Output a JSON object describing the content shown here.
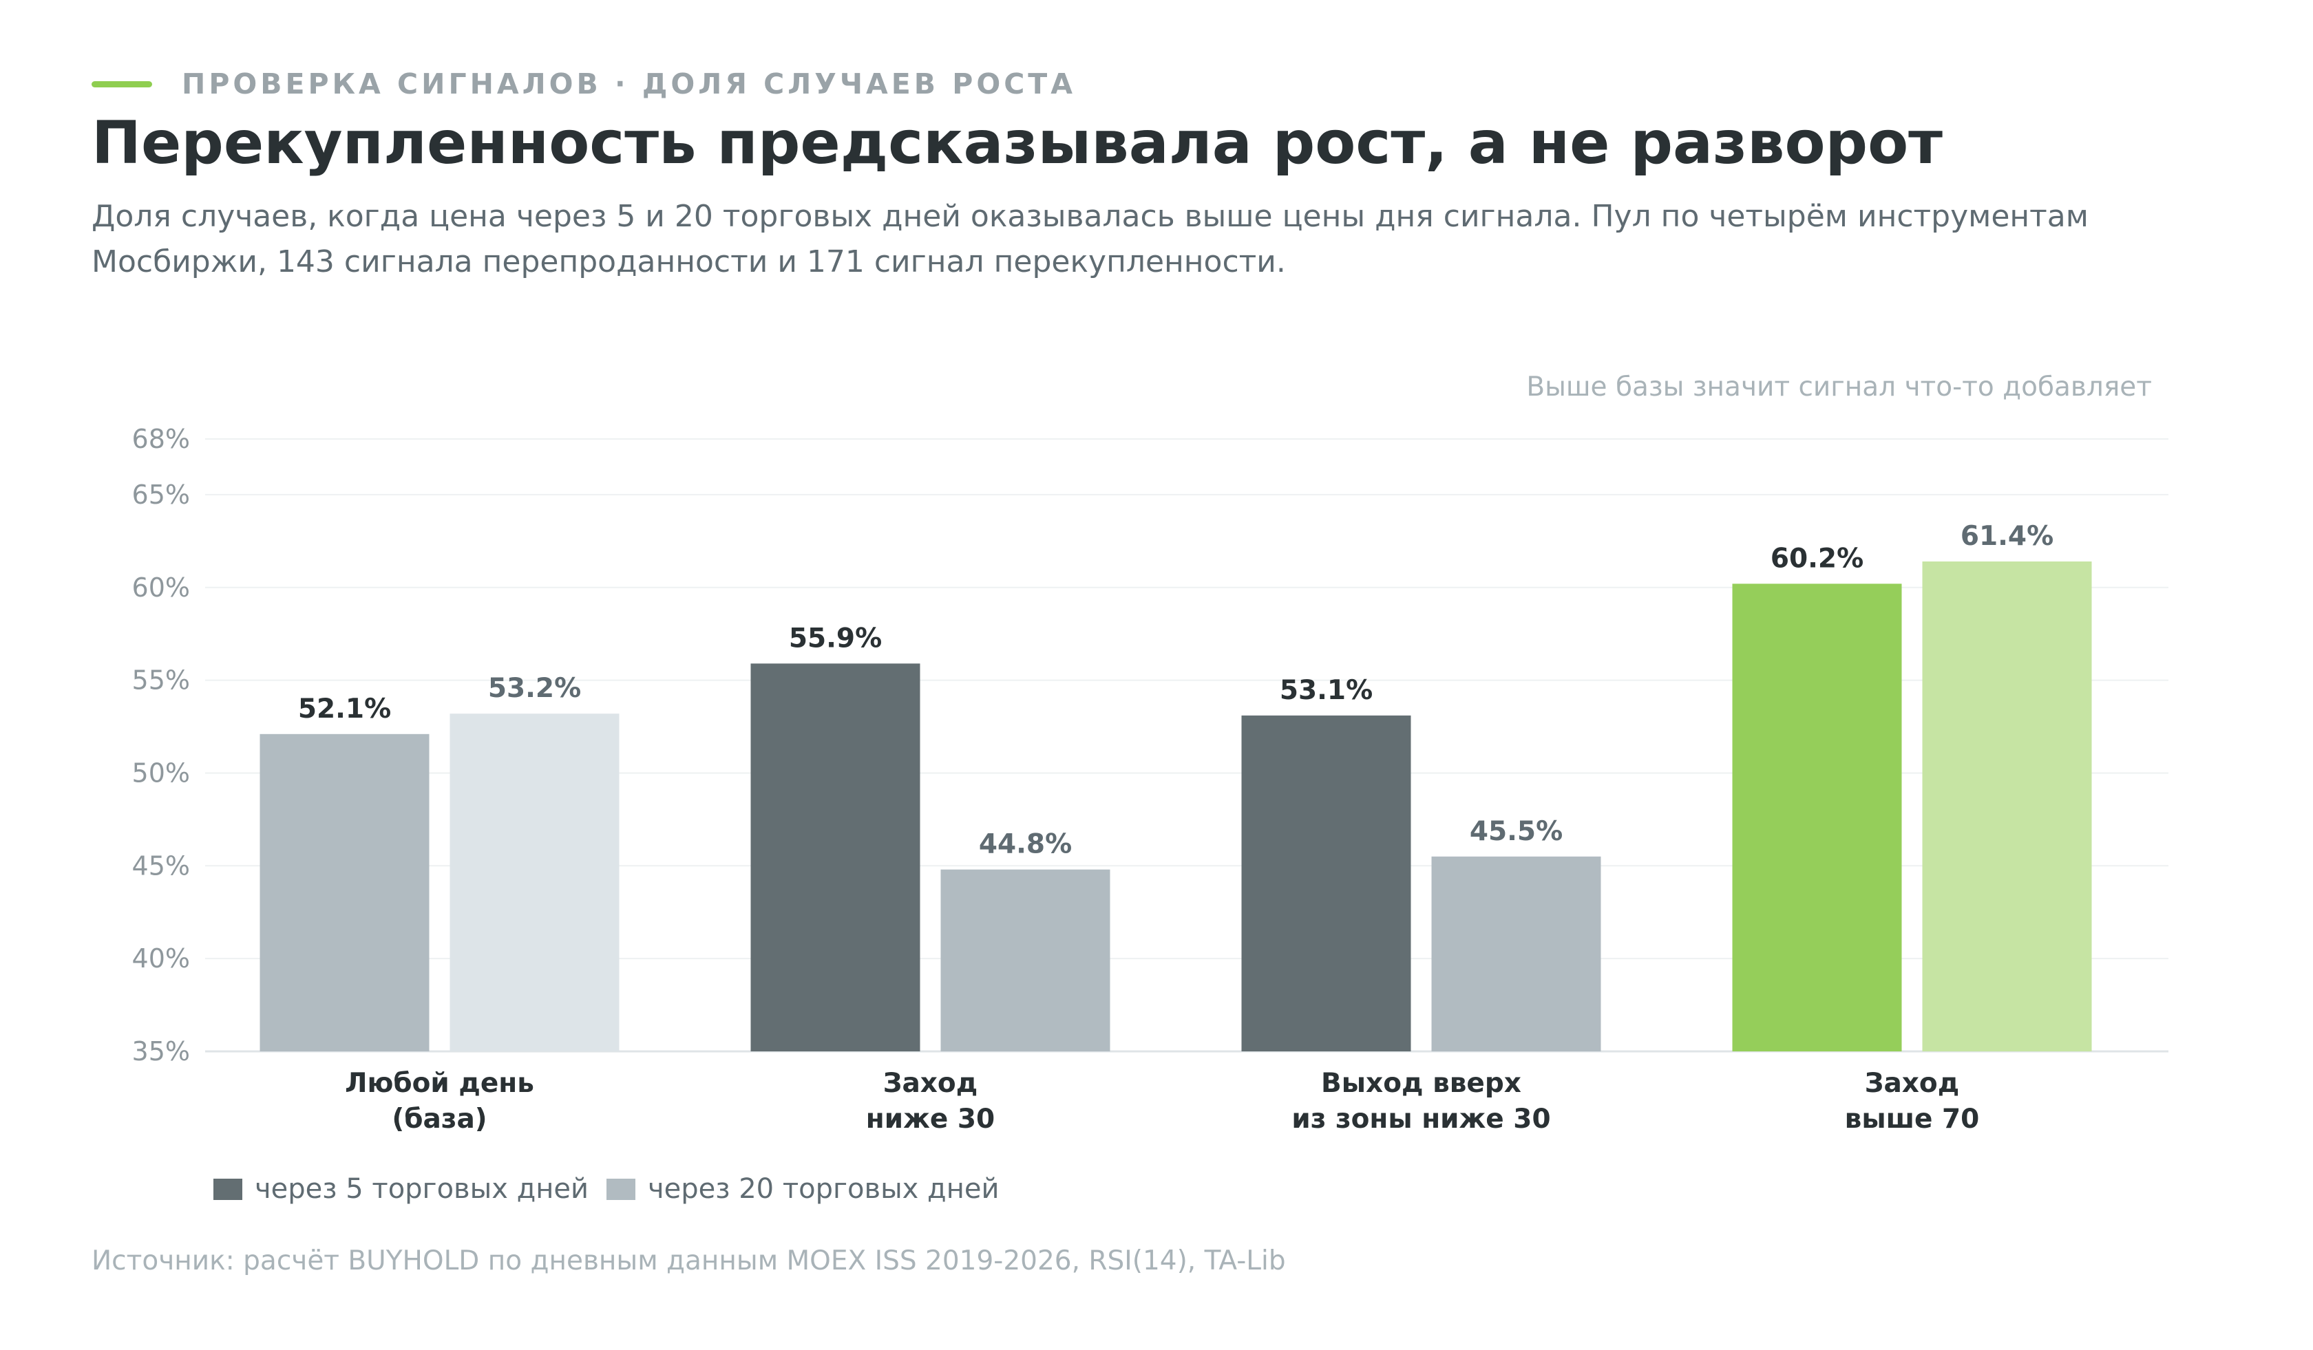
{
  "header": {
    "eyebrow": "ПРОВЕРКА СИГНАЛОВ · ДОЛЯ СЛУЧАЕВ РОСТА",
    "title": "Перекупленность предсказывала рост, а не разворот",
    "subtitle": "Доля случаев, когда цена через 5 и 20 торговых дней оказывалась выше цены дня сигнала. Пул по четырём инструментам Мосбиржи, 143 сигнала перепроданности и 171 сигнал перекупленности."
  },
  "annotation": "Выше базы значит сигнал что-то добавляет",
  "source": "Источник: расчёт BUYHOLD по дневным данным MOEX ISS 2019-2026, RSI(14), TA-Lib",
  "colors": {
    "accent": "#8fce50",
    "base_5": "#b1bbc1",
    "base_20": "#dde4e8",
    "signal_5": "#636e72",
    "signal_20": "#b1bbc1",
    "highlight_5": "#95ce5a",
    "highlight_20": "#c6e4a3",
    "legend_5": "#636e72",
    "legend_20": "#b1bbc1"
  },
  "chart_data": {
    "type": "bar",
    "ylim": [
      35,
      68
    ],
    "yticks": [
      35,
      40,
      45,
      50,
      55,
      60,
      65,
      68
    ],
    "ytick_labels": [
      "35%",
      "40%",
      "45%",
      "50%",
      "55%",
      "60%",
      "65%",
      "68%"
    ],
    "grid": true,
    "legend_position": "bottom-left",
    "categories": [
      [
        "Любой день",
        "(база)"
      ],
      [
        "Заход",
        "ниже 30"
      ],
      [
        "Выход вверх",
        "из зоны ниже 30"
      ],
      [
        "Заход",
        "выше 70"
      ]
    ],
    "series": [
      {
        "name": "через 5 торговых дней",
        "values": [
          52.1,
          55.9,
          53.1,
          60.2
        ],
        "labels": [
          "52.1%",
          "55.9%",
          "53.1%",
          "60.2%"
        ],
        "colors": [
          "#b1bbc1",
          "#636e72",
          "#636e72",
          "#95ce5a"
        ],
        "label_color": "#2a3134"
      },
      {
        "name": "через 20 торговых дней",
        "values": [
          53.2,
          44.8,
          45.5,
          61.4
        ],
        "labels": [
          "53.2%",
          "44.8%",
          "45.5%",
          "61.4%"
        ],
        "colors": [
          "#dde4e8",
          "#b1bbc1",
          "#b1bbc1",
          "#c6e4a3"
        ],
        "label_color": "#5f6b72"
      }
    ]
  }
}
